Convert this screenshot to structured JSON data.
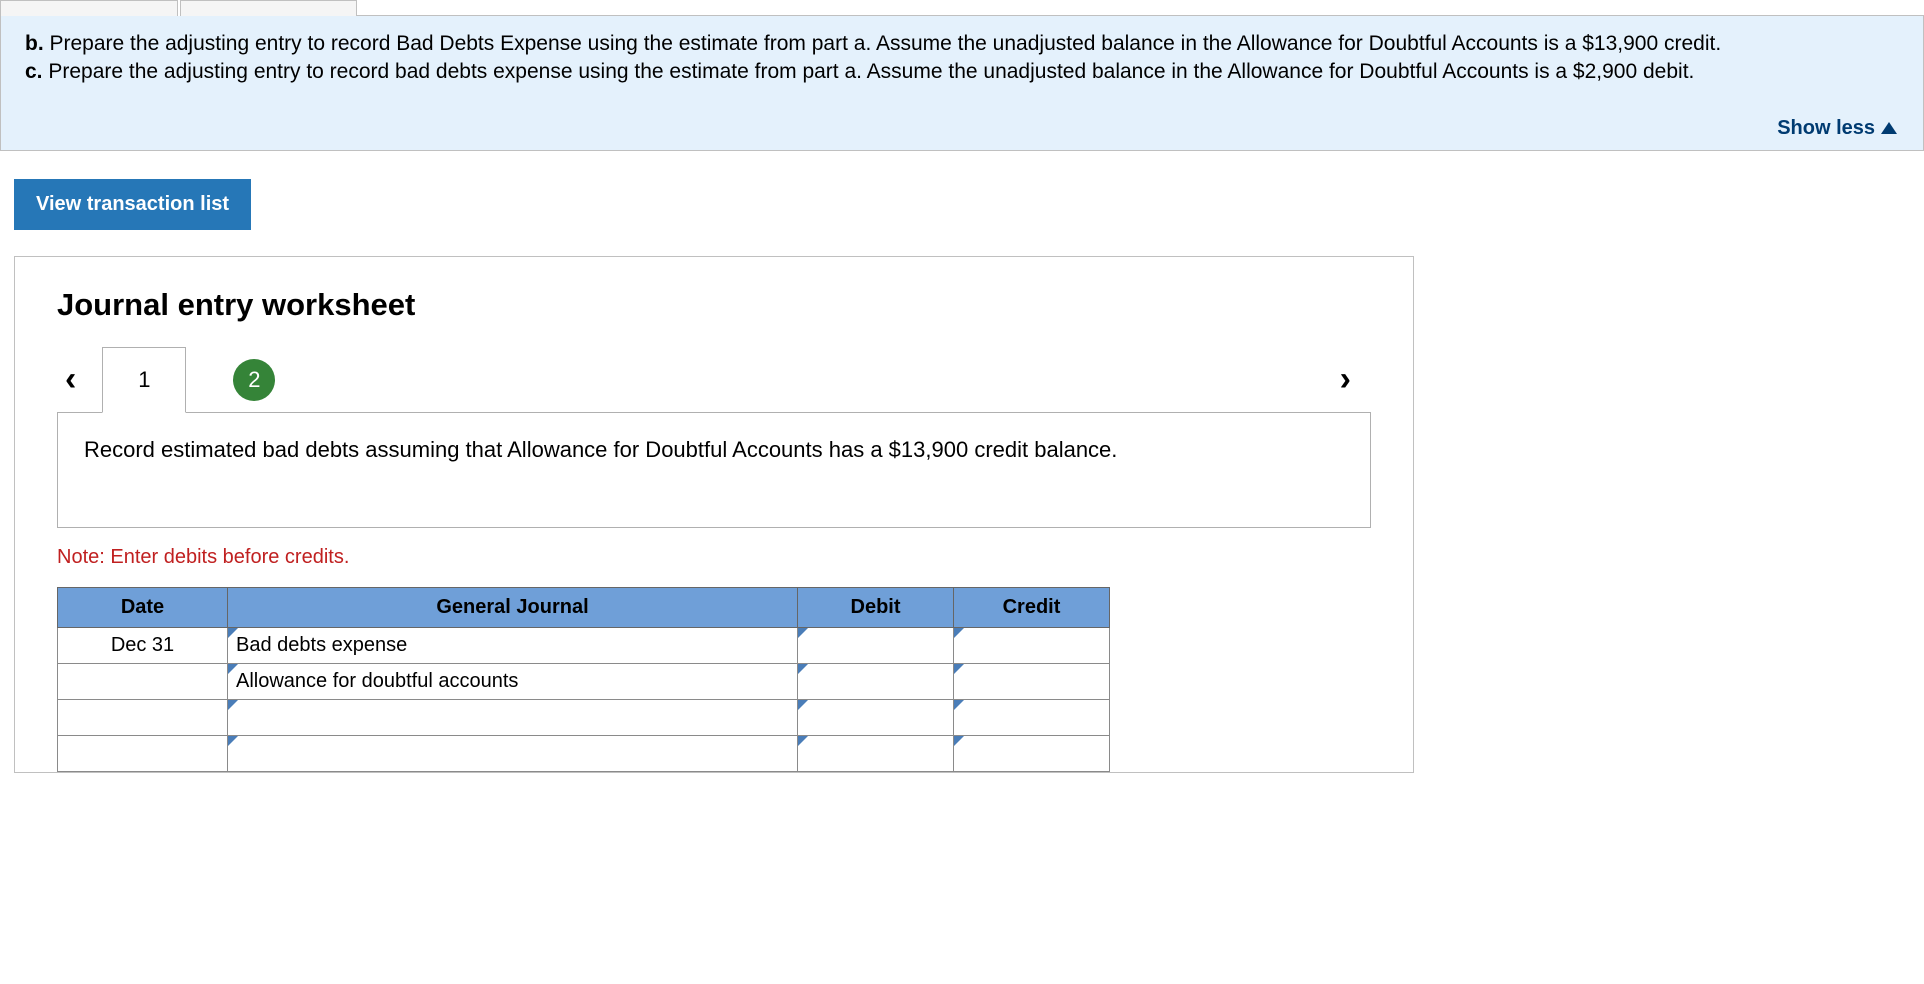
{
  "instruction": {
    "part_b_label": "b.",
    "part_b_text": " Prepare the adjusting entry to record Bad Debts Expense using the estimate from part a. Assume the unadjusted balance in the Allowance for Doubtful Accounts is a $13,900 credit.",
    "part_c_label": "c.",
    "part_c_text": " Prepare the adjusting entry to record bad debts expense using the estimate from part a. Assume the unadjusted balance in the Allowance for Doubtful Accounts is a $2,900 debit."
  },
  "show_less_label": "Show less",
  "view_transaction_label": "View transaction list",
  "worksheet_title": "Journal entry worksheet",
  "tabs": {
    "tab1": "1",
    "tab2": "2"
  },
  "description": "Record estimated bad debts assuming that Allowance for Doubtful Accounts has a $13,900 credit balance.",
  "note": "Note: Enter debits before credits.",
  "table": {
    "headers": {
      "date": "Date",
      "general_journal": "General Journal",
      "debit": "Debit",
      "credit": "Credit"
    },
    "rows": [
      {
        "date": "Dec 31",
        "gj": "Bad debts expense",
        "debit": "",
        "credit": ""
      },
      {
        "date": "",
        "gj": "Allowance for doubtful accounts",
        "debit": "",
        "credit": ""
      },
      {
        "date": "",
        "gj": "",
        "debit": "",
        "credit": ""
      },
      {
        "date": "",
        "gj": "",
        "debit": "",
        "credit": ""
      }
    ]
  },
  "colors": {
    "instruction_bg": "#e4f1fc",
    "button_bg": "#2677b7",
    "table_header_bg": "#6f9fd8",
    "tab_badge_bg": "#358438",
    "note_color": "#c02020",
    "show_less_color": "#003b71"
  }
}
